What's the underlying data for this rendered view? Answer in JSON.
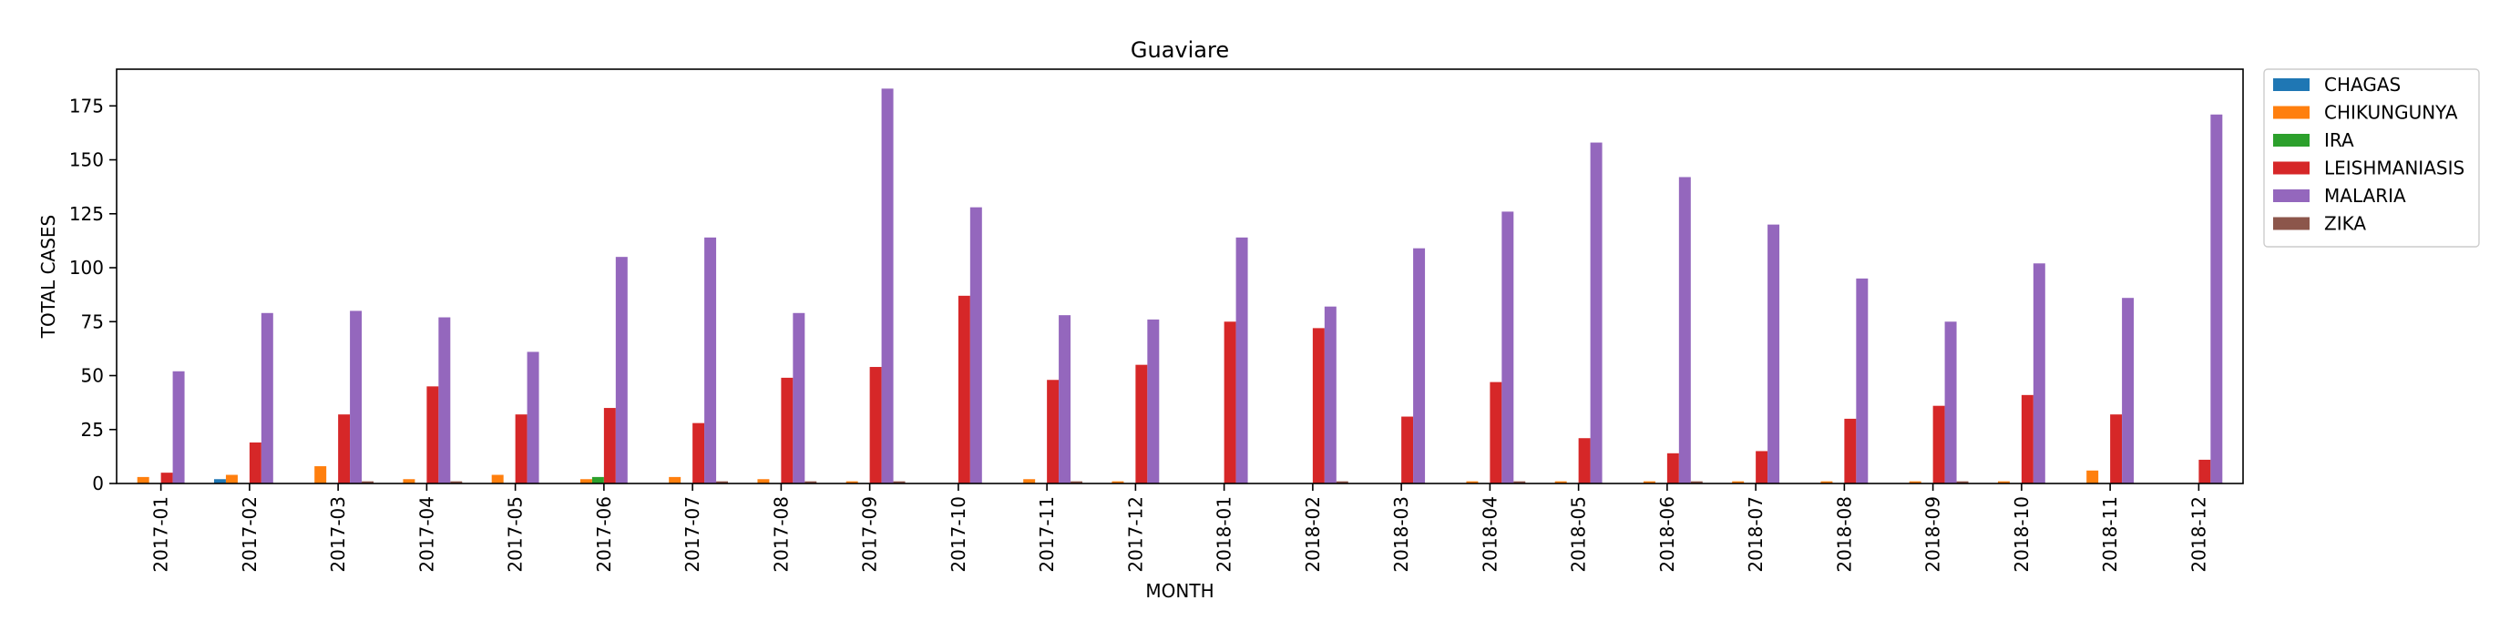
{
  "chart_data": {
    "type": "bar",
    "title": "Guaviare",
    "xlabel": "MONTH",
    "ylabel": "TOTAL CASES",
    "ylim": [
      0,
      192
    ],
    "yticks": [
      0,
      25,
      50,
      75,
      100,
      125,
      150,
      175
    ],
    "grid": false,
    "legend_position": "outside-top-right",
    "categories": [
      "2017-01",
      "2017-02",
      "2017-03",
      "2017-04",
      "2017-05",
      "2017-06",
      "2017-07",
      "2017-08",
      "2017-09",
      "2017-10",
      "2017-11",
      "2017-12",
      "2018-01",
      "2018-02",
      "2018-03",
      "2018-04",
      "2018-05",
      "2018-06",
      "2018-07",
      "2018-08",
      "2018-09",
      "2018-10",
      "2018-11",
      "2018-12"
    ],
    "series": [
      {
        "name": "CHAGAS",
        "color": "#1f77b4",
        "values": [
          0,
          2,
          0,
          0,
          0,
          0,
          0,
          0,
          0,
          0,
          0,
          0,
          0,
          0,
          0,
          0,
          0,
          0,
          0,
          0,
          0,
          0,
          0,
          0
        ]
      },
      {
        "name": "CHIKUNGUNYA",
        "color": "#ff7f0e",
        "values": [
          3,
          4,
          8,
          2,
          4,
          2,
          3,
          2,
          1,
          0,
          2,
          1,
          0,
          0,
          0,
          1,
          1,
          1,
          1,
          1,
          1,
          1,
          6,
          0
        ]
      },
      {
        "name": "IRA",
        "color": "#2ca02c",
        "values": [
          0,
          0,
          0,
          0,
          0,
          3,
          0,
          0,
          0,
          0,
          0,
          0,
          0,
          0,
          0,
          0,
          0,
          0,
          0,
          0,
          0,
          0,
          0,
          0
        ]
      },
      {
        "name": "LEISHMANIASIS",
        "color": "#d62728",
        "values": [
          5,
          19,
          32,
          45,
          32,
          35,
          28,
          49,
          54,
          87,
          48,
          55,
          75,
          72,
          31,
          47,
          21,
          14,
          15,
          30,
          36,
          41,
          32,
          11
        ]
      },
      {
        "name": "MALARIA",
        "color": "#9467bd",
        "values": [
          52,
          79,
          80,
          77,
          61,
          105,
          114,
          79,
          183,
          128,
          78,
          76,
          114,
          82,
          109,
          126,
          158,
          142,
          120,
          95,
          75,
          102,
          86,
          171
        ]
      },
      {
        "name": "ZIKA",
        "color": "#8c564b",
        "values": [
          0,
          0,
          1,
          1,
          0,
          0,
          1,
          1,
          1,
          0,
          1,
          0,
          0,
          1,
          0,
          1,
          0,
          1,
          0,
          0,
          1,
          0,
          0,
          0
        ]
      }
    ]
  }
}
